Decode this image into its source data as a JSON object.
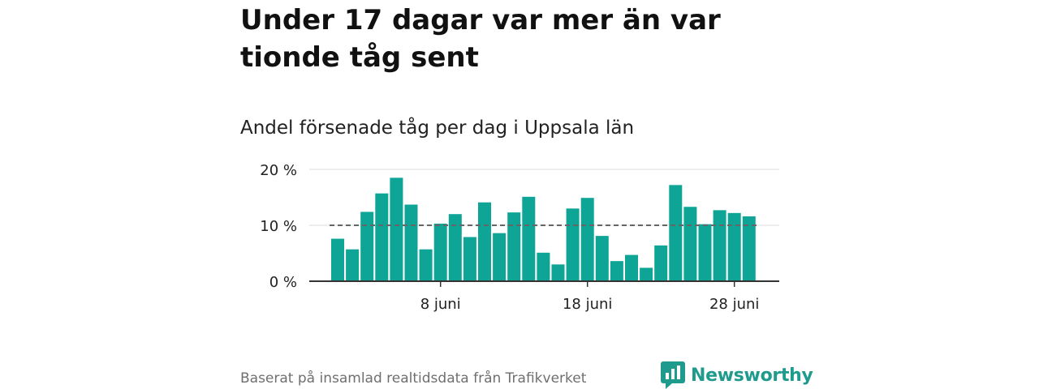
{
  "title": "Under 17 dagar var mer än var tionde tåg sent",
  "subtitle": "Andel försenade tåg per dag i Uppsala län",
  "source_note": "Baserat på insamlad realtidsdata från Trafikverket",
  "brand": {
    "name": "Newsworthy",
    "icon": "bar-chart-speech-bubble-icon",
    "color": "#1f9b8e"
  },
  "colors": {
    "bar": "#0ea597",
    "axis": "#333333",
    "grid": "#dddddd",
    "reference_line": "#666666"
  },
  "chart_data": {
    "type": "bar",
    "x_label_unit": "juni",
    "days": [
      1,
      2,
      3,
      4,
      5,
      6,
      7,
      8,
      9,
      10,
      11,
      12,
      13,
      14,
      15,
      16,
      17,
      18,
      19,
      20,
      21,
      22,
      23,
      24,
      25,
      26,
      27,
      28,
      29
    ],
    "values": [
      7.6,
      5.7,
      12.4,
      15.7,
      18.5,
      13.7,
      5.7,
      10.3,
      12.0,
      7.9,
      14.1,
      8.6,
      12.3,
      15.1,
      5.1,
      3.0,
      13.0,
      14.9,
      8.1,
      3.6,
      4.7,
      2.4,
      6.4,
      17.2,
      13.3,
      10.2,
      12.7,
      12.2,
      11.6
    ],
    "reference_line": 10,
    "ylim": [
      0,
      20
    ],
    "y_ticks": [
      {
        "value": 0,
        "label": "0 %"
      },
      {
        "value": 10,
        "label": "10 %"
      },
      {
        "value": 20,
        "label": "20 %"
      }
    ],
    "x_ticks": [
      {
        "day": 8,
        "label": "8 juni"
      },
      {
        "day": 18,
        "label": "18 juni"
      },
      {
        "day": 28,
        "label": "28 juni"
      }
    ],
    "grid": true
  }
}
